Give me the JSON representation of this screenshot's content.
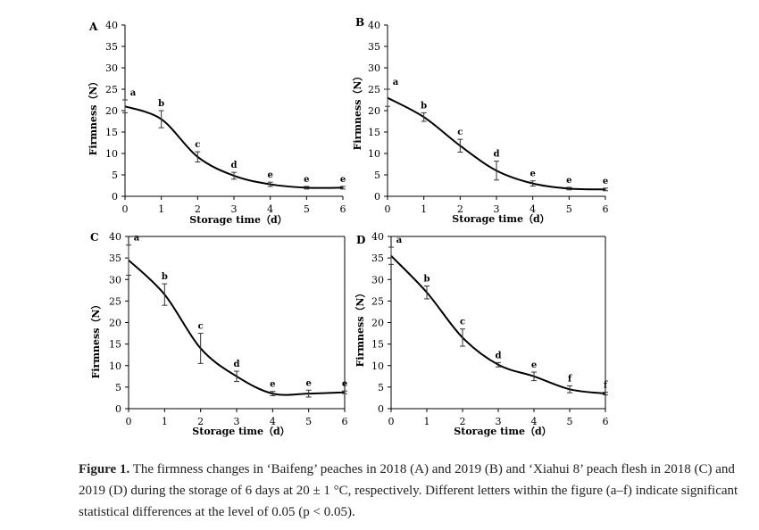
{
  "chart_data": [
    {
      "panel": "A",
      "type": "line",
      "xlabel": "Storage time（d）",
      "ylabel": "Firmness（N）",
      "xlim": [
        0,
        6
      ],
      "ylim": [
        0,
        40
      ],
      "x_ticks": [
        0,
        1,
        2,
        3,
        4,
        5,
        6
      ],
      "y_ticks": [
        0,
        5,
        10,
        15,
        20,
        25,
        30,
        35,
        40
      ],
      "x": [
        0,
        1,
        2,
        3,
        4,
        5,
        6
      ],
      "values": [
        21.0,
        18.0,
        9.2,
        4.8,
        2.8,
        2.0,
        2.0
      ],
      "errors": [
        1.5,
        2.0,
        1.2,
        0.8,
        0.5,
        0.3,
        0.3
      ],
      "letters": [
        "a",
        "b",
        "c",
        "d",
        "e",
        "e",
        "e"
      ]
    },
    {
      "panel": "B",
      "type": "line",
      "xlabel": "Storage time（d）",
      "ylabel": "Firmness（N）",
      "xlim": [
        0,
        6
      ],
      "ylim": [
        0,
        40
      ],
      "x_ticks": [
        0,
        1,
        2,
        3,
        4,
        5,
        6
      ],
      "y_ticks": [
        0,
        5,
        10,
        15,
        20,
        25,
        30,
        35,
        40
      ],
      "x": [
        0,
        1,
        2,
        3,
        4,
        5,
        6
      ],
      "values": [
        23.0,
        18.5,
        11.8,
        6.0,
        3.0,
        1.8,
        1.6
      ],
      "errors": [
        2.0,
        1.0,
        1.5,
        2.2,
        0.6,
        0.3,
        0.3
      ],
      "letters": [
        "a",
        "b",
        "c",
        "d",
        "e",
        "e",
        "e"
      ]
    },
    {
      "panel": "C",
      "type": "line",
      "xlabel": "Storage time（d）",
      "ylabel": "Firmness（N）",
      "xlim": [
        0,
        6
      ],
      "ylim": [
        0,
        40
      ],
      "x_ticks": [
        0,
        1,
        2,
        3,
        4,
        5,
        6
      ],
      "y_ticks": [
        0,
        5,
        10,
        15,
        20,
        25,
        30,
        35,
        40
      ],
      "x": [
        0,
        1,
        2,
        3,
        4,
        5,
        6
      ],
      "values": [
        34.5,
        26.5,
        14.0,
        7.5,
        3.5,
        3.5,
        3.8
      ],
      "errors": [
        3.5,
        2.5,
        3.5,
        1.2,
        0.5,
        0.8,
        0.3
      ],
      "letters": [
        "a",
        "b",
        "c",
        "d",
        "e",
        "e",
        "e"
      ]
    },
    {
      "panel": "D",
      "type": "line",
      "xlabel": "Storage time（d）",
      "ylabel": "Firmness（N）",
      "xlim": [
        0,
        6
      ],
      "ylim": [
        0,
        40
      ],
      "x_ticks": [
        0,
        1,
        2,
        3,
        4,
        5,
        6
      ],
      "y_ticks": [
        0,
        5,
        10,
        15,
        20,
        25,
        30,
        35,
        40
      ],
      "x": [
        0,
        1,
        2,
        3,
        4,
        5,
        6
      ],
      "values": [
        35.5,
        27.0,
        16.5,
        10.2,
        7.5,
        4.5,
        3.5
      ],
      "errors": [
        2.0,
        1.5,
        2.0,
        0.5,
        1.0,
        0.8,
        0.3
      ],
      "letters": [
        "a",
        "b",
        "c",
        "d",
        "e",
        "f",
        "f"
      ]
    }
  ],
  "caption": {
    "label": "Figure 1.",
    "text": " The firmness changes in ‘Baifeng’ peaches in 2018 (A) and 2019 (B) and ‘Xiahui 8’ peach flesh in 2018 (C) and 2019 (D) during the storage of 6 days at 20 ± 1 °C, respectively. Different letters within the figure (a–f) indicate significant statistical differences at the level of 0.05 (p < 0.05)."
  }
}
